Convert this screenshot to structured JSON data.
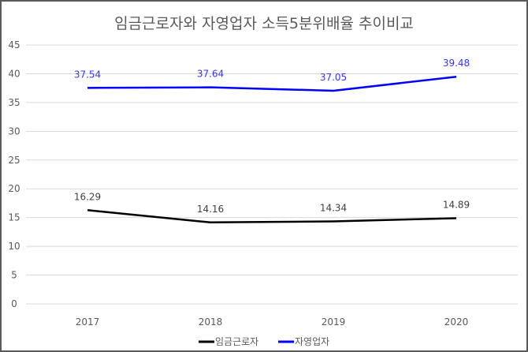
{
  "chart_data": {
    "type": "line",
    "title": "임금근로자와 자영업자 소득5분위배율 추이비교",
    "categories": [
      "2017",
      "2018",
      "2019",
      "2020"
    ],
    "series": [
      {
        "name": "임금근로자",
        "values": [
          16.29,
          14.16,
          14.34,
          14.89
        ],
        "labels": [
          "16.29",
          "14.16",
          "14.34",
          "14.89"
        ],
        "color": "#000000"
      },
      {
        "name": "자영업자",
        "values": [
          37.54,
          37.64,
          37.05,
          39.48
        ],
        "labels": [
          "37.54",
          "37.64",
          "37.05",
          "39.48"
        ],
        "color": "#0000ff"
      }
    ],
    "ylim": [
      0,
      45
    ],
    "yticks": [
      "0",
      "5",
      "10",
      "15",
      "20",
      "25",
      "30",
      "35",
      "40",
      "45"
    ],
    "grid": true,
    "legend": "bottom"
  }
}
